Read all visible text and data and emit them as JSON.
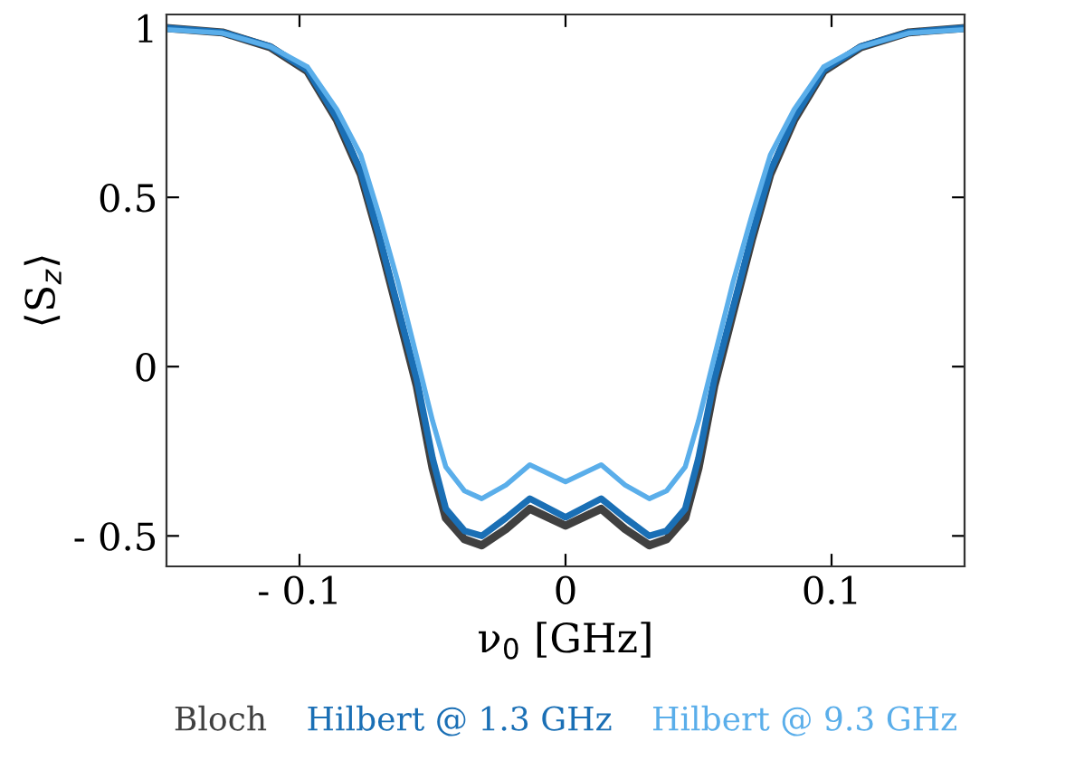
{
  "chart_data": {
    "type": "line",
    "xlabel": "ν$_{0}$ [GHz]",
    "ylabel": "⟨S$_{z}$⟩",
    "x": [
      -0.15,
      -0.129,
      -0.111,
      -0.097,
      -0.086,
      -0.077,
      -0.07,
      -0.063,
      -0.056,
      -0.05,
      -0.045,
      -0.038,
      -0.0315,
      -0.0224,
      -0.0134,
      0,
      0.0134,
      0.0224,
      0.0315,
      0.038,
      0.045,
      0.05,
      0.056,
      0.063,
      0.07,
      0.077,
      0.086,
      0.097,
      0.111,
      0.129,
      0.15
    ],
    "series": [
      {
        "name": "Bloch",
        "color": "#404040",
        "values": [
          1.0,
          0.987,
          0.943,
          0.872,
          0.729,
          0.568,
          0.373,
          0.16,
          -0.055,
          -0.3,
          -0.447,
          -0.51,
          -0.528,
          -0.48,
          -0.42,
          -0.47,
          -0.42,
          -0.48,
          -0.528,
          -0.51,
          -0.447,
          -0.3,
          -0.055,
          0.16,
          0.373,
          0.568,
          0.729,
          0.872,
          0.943,
          0.987,
          1.0
        ]
      },
      {
        "name": "Hilbert @ 1.3 GHz",
        "color": "#1a6fb5",
        "values": [
          1.0,
          0.987,
          0.945,
          0.876,
          0.735,
          0.578,
          0.385,
          0.175,
          -0.035,
          -0.27,
          -0.42,
          -0.485,
          -0.5,
          -0.447,
          -0.39,
          -0.445,
          -0.39,
          -0.447,
          -0.5,
          -0.485,
          -0.42,
          -0.27,
          -0.035,
          0.175,
          0.385,
          0.578,
          0.735,
          0.876,
          0.945,
          0.987,
          1.0
        ]
      },
      {
        "name": "Hilbert @ 9.3 GHz",
        "color": "#5aaeea",
        "values": [
          0.995,
          0.985,
          0.945,
          0.885,
          0.76,
          0.625,
          0.445,
          0.25,
          0.03,
          -0.16,
          -0.296,
          -0.367,
          -0.39,
          -0.35,
          -0.29,
          -0.34,
          -0.29,
          -0.35,
          -0.39,
          -0.367,
          -0.296,
          -0.16,
          0.03,
          0.25,
          0.445,
          0.625,
          0.76,
          0.885,
          0.945,
          0.985,
          0.995
        ]
      }
    ],
    "xlim": [
      -0.15,
      0.15
    ],
    "ylim": [
      -0.59,
      1.04
    ],
    "xticks": [
      {
        "value": -0.1,
        "label": "- 0.1"
      },
      0,
      0.1
    ],
    "yticks": [
      {
        "value": -0.5,
        "label": "- 0.5"
      },
      0,
      0.5,
      1
    ],
    "grid": false,
    "legend": "bottom",
    "marker": "none",
    "line_style": "solid"
  }
}
